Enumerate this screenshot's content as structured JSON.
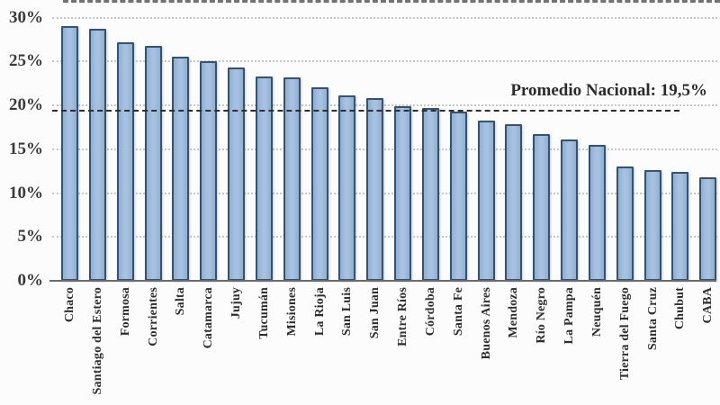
{
  "chart_data": {
    "type": "bar",
    "title": "",
    "xlabel": "",
    "ylabel": "",
    "categories": [
      "Chaco",
      "Santiago del Estero",
      "Formosa",
      "Corrientes",
      "Salta",
      "Catamarca",
      "Jujuy",
      "Tucumán",
      "Misiones",
      "La Rioja",
      "San Luis",
      "San Juan",
      "Entre Ríos",
      "Córdoba",
      "Santa Fe",
      "Buenos Aires",
      "Mendoza",
      "Río Negro",
      "La Pampa",
      "Neuquén",
      "Tierra del Fuego",
      "Santa Cruz",
      "Chubut",
      "CABA"
    ],
    "values": [
      29.0,
      28.7,
      27.2,
      26.8,
      25.5,
      25.0,
      24.3,
      23.3,
      23.2,
      22.1,
      21.1,
      20.8,
      19.9,
      19.7,
      19.3,
      18.3,
      17.9,
      16.7,
      16.1,
      15.5,
      13.0,
      12.6,
      12.4,
      11.8
    ],
    "value_unit": "%",
    "ylim": [
      0,
      30
    ],
    "ytick_step": 5,
    "yticks": [
      "0%",
      "5%",
      "10%",
      "15%",
      "20%",
      "25%",
      "30%"
    ],
    "grid": "horizontal-dotted",
    "legend": "none",
    "annotation": {
      "text": "Promedio Nacional: 19,5%",
      "value": 19.5
    },
    "colors": {
      "bar_fill": "#a0bbdc",
      "bar_border": "#35536f",
      "grid_line": "#c7c7c7",
      "average_line": "#2f2f2f",
      "axis_line": "#6b6b6b",
      "label_text": "#2e2e2e"
    }
  }
}
